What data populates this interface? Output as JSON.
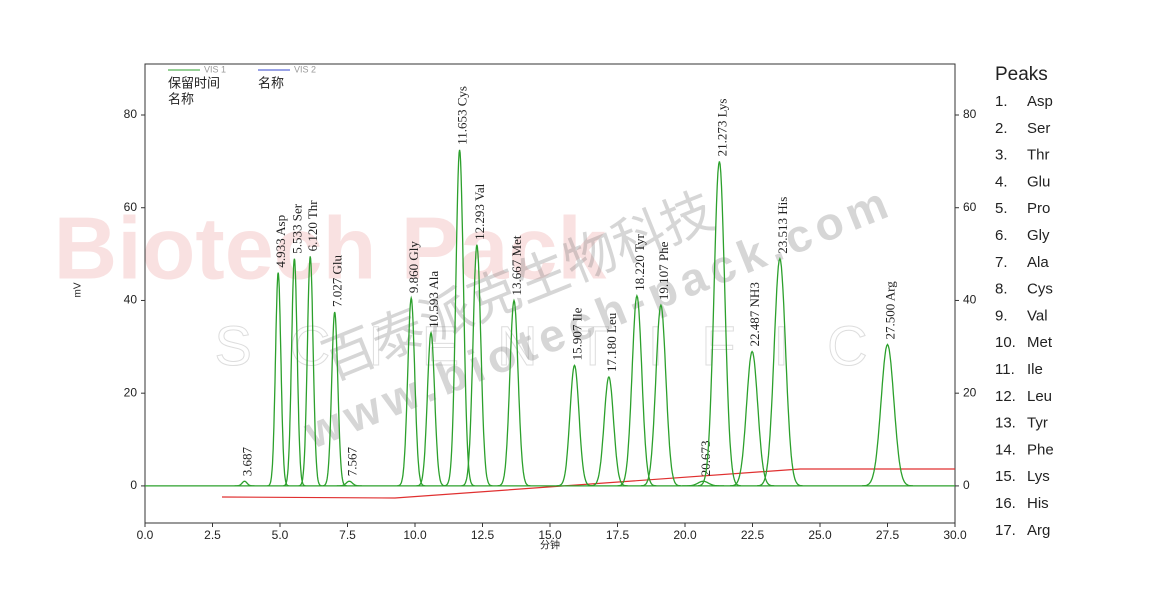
{
  "chart_data": {
    "type": "line",
    "y_label": "mV",
    "x_label": "分钟",
    "legend": [
      {
        "name": "VIS 1",
        "color": "#2ca02c"
      },
      {
        "name": "VIS 2",
        "color": "#3344cc"
      }
    ],
    "legend_fields": [
      "保留时间",
      "名称",
      "名称"
    ],
    "x": [
      3.687,
      4.933,
      5.533,
      6.12,
      7.027,
      7.567,
      9.86,
      10.593,
      11.653,
      12.293,
      13.667,
      15.907,
      17.18,
      18.22,
      19.107,
      20.673,
      21.273,
      22.487,
      23.513,
      27.5
    ],
    "values": [
      1,
      46,
      49,
      49.5,
      37.5,
      1,
      40.5,
      33,
      72.5,
      52,
      40,
      26,
      23.5,
      41,
      39,
      1,
      70,
      29,
      49,
      30.5
    ],
    "annotations": [
      "3.687",
      "4.933  Asp",
      "5.533  Ser",
      "6.120  Thr",
      "7.027  Glu",
      "7.567",
      "9.860  Gly",
      "10.593  Ala",
      "11.653  Cys",
      "12.293  Val",
      "13.667  Met",
      "15.907  Ile",
      "17.180  Leu",
      "18.220  Tyr",
      "19.107  Phe",
      "20.673",
      "21.273  Lys",
      "22.487  NH3",
      "23.513  His",
      "27.500  Arg"
    ],
    "color": "#2ca02c",
    "xlim": [
      0,
      30
    ],
    "xticks": [
      {
        "value": 0,
        "label": "0.0"
      },
      {
        "value": 2.5,
        "label": "2.5"
      },
      {
        "value": 5,
        "label": "5.0"
      },
      {
        "value": 7.5,
        "label": "7.5"
      },
      {
        "value": 10,
        "label": "10.0"
      },
      {
        "value": 12.5,
        "label": "12.5"
      },
      {
        "value": 15,
        "label": "15.0"
      },
      {
        "value": 17.5,
        "label": "17.5"
      },
      {
        "value": 20,
        "label": "20.0"
      },
      {
        "value": 22.5,
        "label": "22.5"
      },
      {
        "value": 25,
        "label": "25.0"
      },
      {
        "value": 27.5,
        "label": "27.5"
      },
      {
        "value": 30,
        "label": "30.0"
      }
    ],
    "ylim": [
      -8,
      91
    ],
    "yticks": [
      0,
      20,
      40,
      60,
      80
    ],
    "y2lim": [
      -8,
      91
    ],
    "y2ticks": [
      0,
      20,
      40,
      60,
      80
    ],
    "peaks_title": "Peaks",
    "peaks_list": [
      [
        "1.",
        "Asp"
      ],
      [
        "2.",
        "Ser"
      ],
      [
        "3.",
        "Thr"
      ],
      [
        "4.",
        "Glu"
      ],
      [
        "5.",
        "Pro"
      ],
      [
        "6.",
        "Gly"
      ],
      [
        "7.",
        "Ala"
      ],
      [
        "8.",
        "Cys"
      ],
      [
        "9.",
        "Val"
      ],
      [
        "10.",
        "Met"
      ],
      [
        "11.",
        "Ile"
      ],
      [
        "12.",
        "Leu"
      ],
      [
        "13.",
        "Tyr"
      ],
      [
        "14.",
        "Phe"
      ],
      [
        "15.",
        "Lys"
      ],
      [
        "16.",
        "His"
      ],
      [
        "17.",
        "Arg"
      ]
    ],
    "watermarks": [
      "Biotech Pack",
      "SCIENTIFIC",
      "百泰派克生物科技",
      "www.biotech-pack.com"
    ]
  }
}
